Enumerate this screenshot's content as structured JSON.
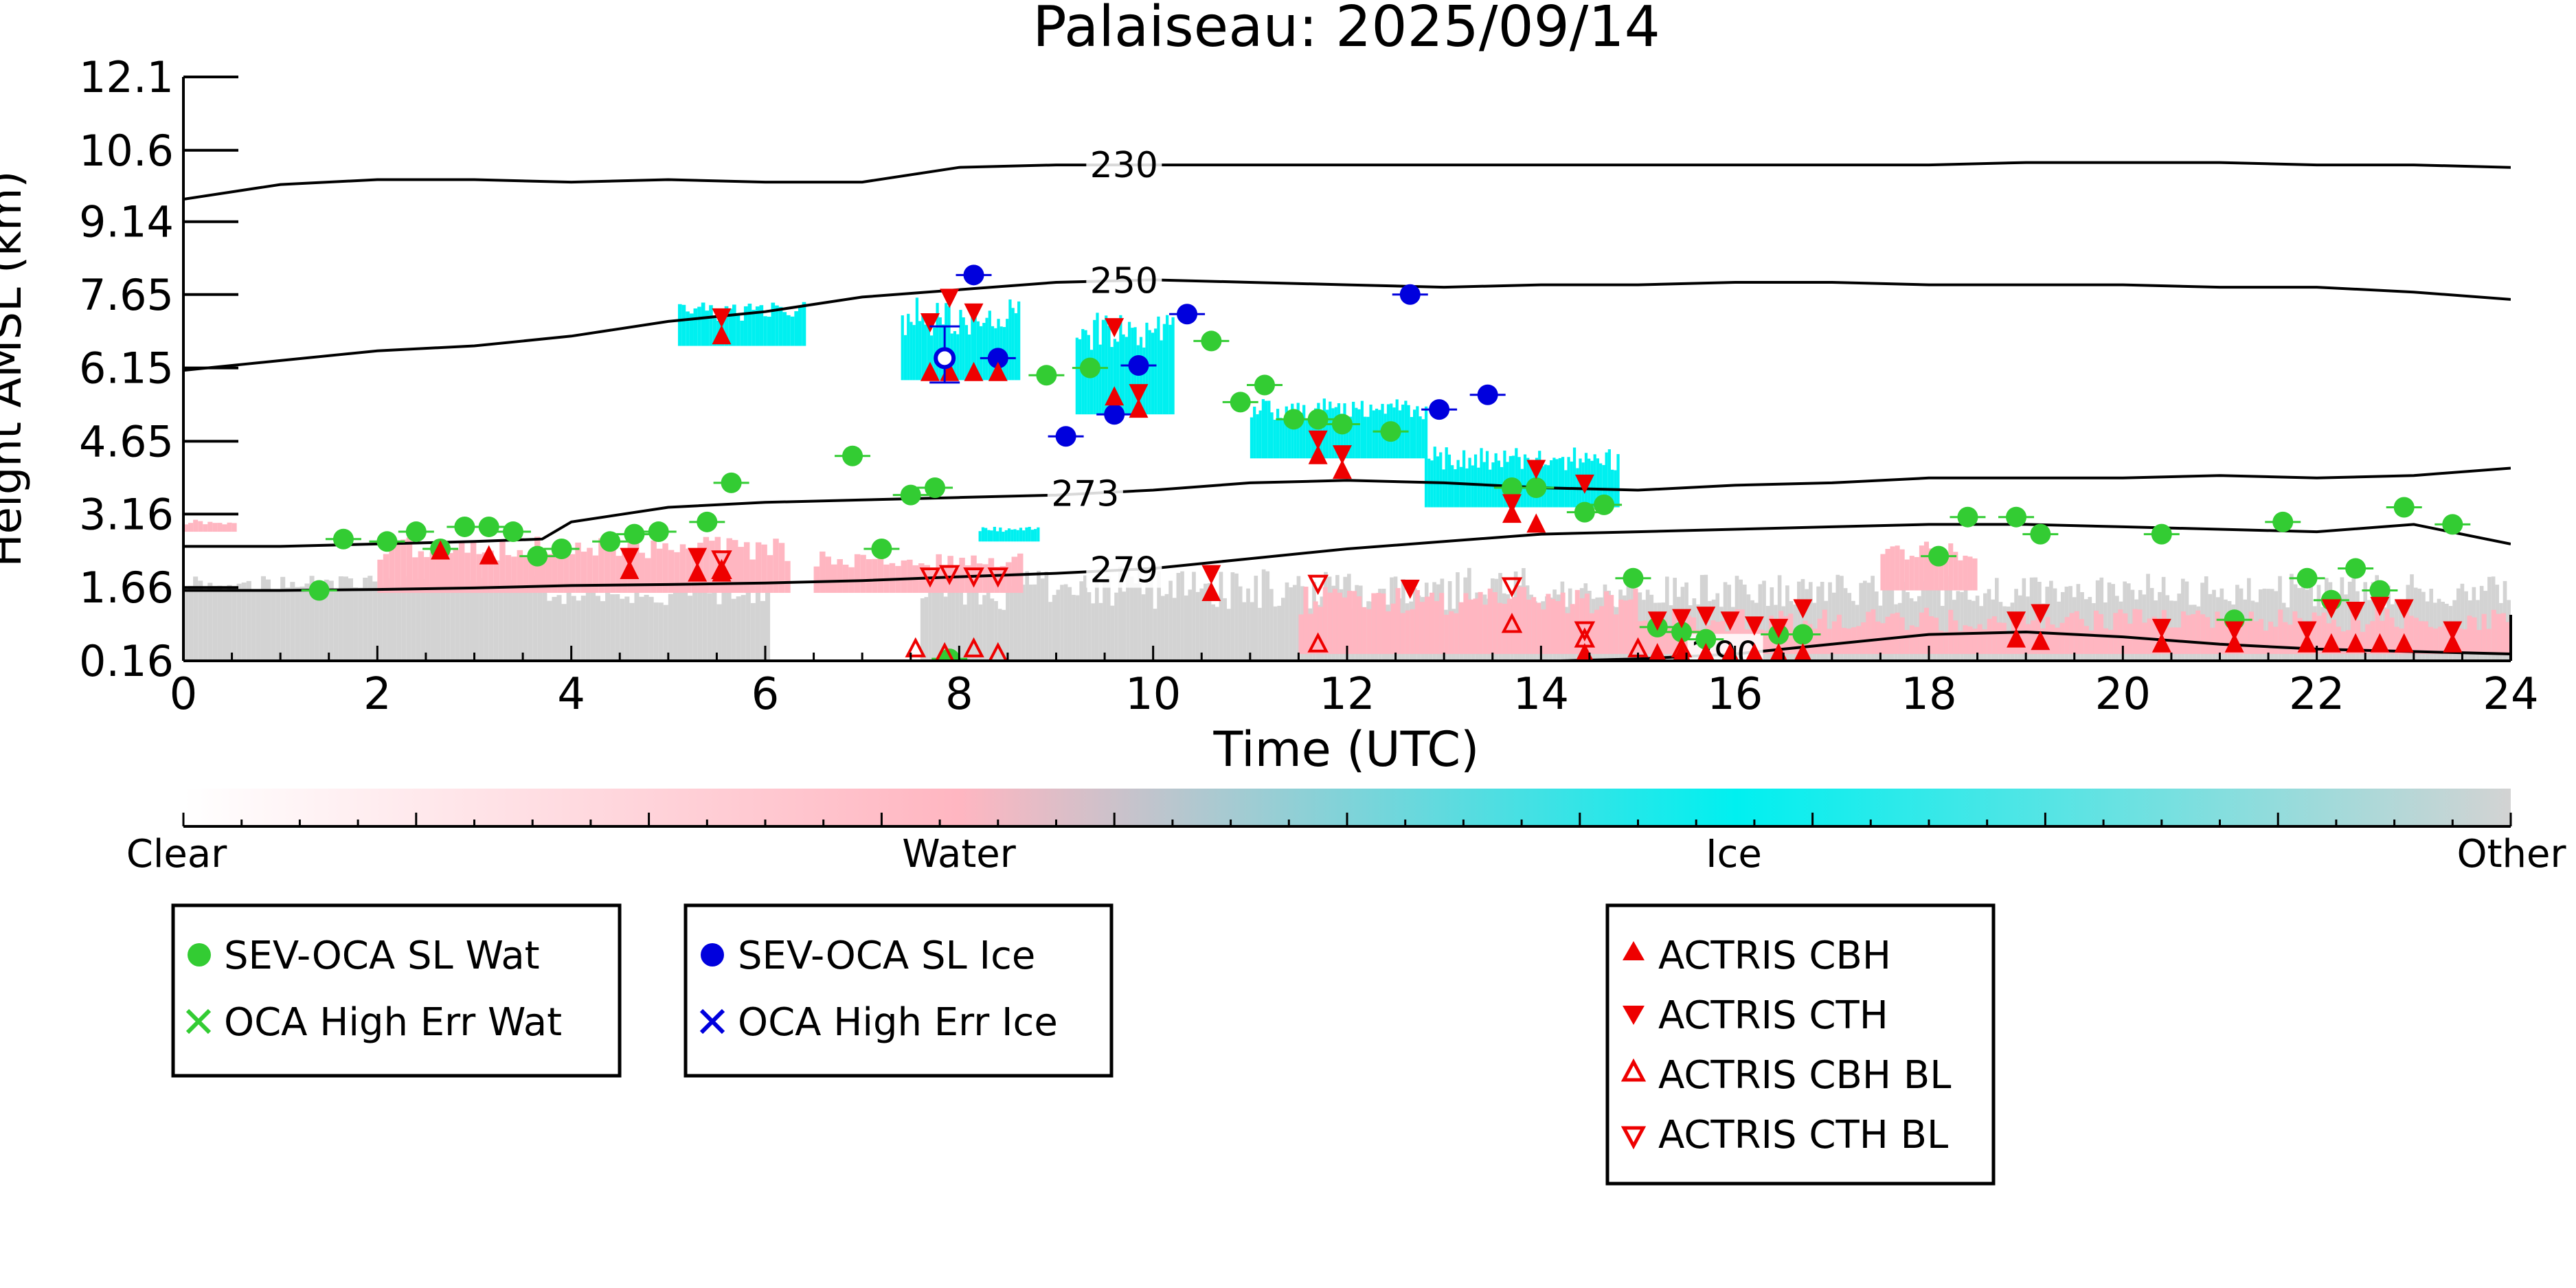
{
  "chart_data": {
    "type": "scatter",
    "title": "Palaiseau: 2025/09/14",
    "xlabel": "Time (UTC)",
    "ylabel": "Height AMSL (km)",
    "xlim": [
      0,
      24
    ],
    "ylim": [
      0.16,
      12.1
    ],
    "xticks": [
      0,
      2,
      4,
      6,
      8,
      10,
      12,
      14,
      16,
      18,
      20,
      22,
      24
    ],
    "yticks": [
      "12.1",
      "10.6",
      "9.14",
      "7.65",
      "6.15",
      "4.65",
      "3.16",
      "1.66",
      "0.16"
    ],
    "colorbar": {
      "labels": [
        "Clear",
        "Water",
        "Ice",
        "Other"
      ],
      "colors": [
        "#ffffff",
        "#ffb6c1",
        "#00f0f0",
        "#d3d3d3"
      ]
    },
    "contours": [
      {
        "label": "230",
        "x": [
          0,
          1,
          2,
          3,
          4,
          5,
          6,
          7,
          8,
          9,
          10,
          11,
          12,
          13,
          14,
          15,
          16,
          17,
          18,
          19,
          20,
          21,
          22,
          23,
          24
        ],
        "y": [
          9.6,
          9.9,
          10.0,
          10.0,
          9.95,
          10.0,
          9.95,
          9.95,
          10.25,
          10.3,
          10.3,
          10.3,
          10.3,
          10.3,
          10.3,
          10.3,
          10.3,
          10.3,
          10.3,
          10.35,
          10.35,
          10.35,
          10.3,
          10.3,
          10.25
        ]
      },
      {
        "label": "250",
        "x": [
          0,
          1,
          2,
          3,
          4,
          5,
          6,
          7,
          8,
          9,
          10,
          11,
          12,
          13,
          14,
          15,
          16,
          17,
          18,
          19,
          20,
          21,
          22,
          23,
          24
        ],
        "y": [
          6.1,
          6.3,
          6.5,
          6.6,
          6.8,
          7.1,
          7.3,
          7.6,
          7.75,
          7.9,
          7.95,
          7.9,
          7.85,
          7.8,
          7.85,
          7.85,
          7.9,
          7.9,
          7.85,
          7.85,
          7.85,
          7.8,
          7.8,
          7.7,
          7.55
        ]
      },
      {
        "label": "273",
        "x": [
          0,
          1,
          2,
          3,
          3.7,
          4,
          5,
          6,
          7,
          8,
          9,
          10,
          11,
          12,
          13,
          14,
          15,
          16,
          17,
          18,
          19,
          20,
          21,
          22,
          23,
          24
        ],
        "y": [
          2.5,
          2.5,
          2.55,
          2.6,
          2.65,
          3.0,
          3.3,
          3.4,
          3.45,
          3.5,
          3.55,
          3.65,
          3.8,
          3.85,
          3.8,
          3.7,
          3.65,
          3.75,
          3.8,
          3.9,
          3.9,
          3.9,
          3.95,
          3.9,
          3.95,
          4.1
        ]
      },
      {
        "label": "279",
        "x": [
          0,
          1,
          2,
          3,
          4,
          5,
          6,
          7,
          8,
          9,
          10,
          11,
          12,
          13,
          14,
          15,
          16,
          17,
          18,
          19,
          20,
          21,
          22,
          23,
          24
        ],
        "y": [
          1.6,
          1.6,
          1.62,
          1.65,
          1.7,
          1.72,
          1.75,
          1.8,
          1.88,
          1.95,
          2.05,
          2.25,
          2.45,
          2.6,
          2.75,
          2.8,
          2.85,
          2.9,
          2.95,
          2.95,
          2.9,
          2.85,
          2.8,
          2.95,
          2.55
        ]
      },
      {
        "label": "290",
        "x": [
          14.2,
          15,
          16,
          17,
          18,
          19,
          20,
          21,
          22,
          23,
          24
        ],
        "y": [
          0.16,
          0.2,
          0.3,
          0.5,
          0.7,
          0.75,
          0.65,
          0.5,
          0.4,
          0.35,
          0.3
        ]
      }
    ],
    "legend": [
      {
        "name": "SEV-OCA SL Wat",
        "marker": "circle",
        "color": "#33cc33"
      },
      {
        "name": "OCA High Err Wat",
        "marker": "x",
        "color": "#33cc33"
      },
      {
        "name": "SEV-OCA SL Ice",
        "marker": "circle",
        "color": "#0000dd"
      },
      {
        "name": "OCA High Err Ice",
        "marker": "x",
        "color": "#0000dd"
      },
      {
        "name": "ACTRIS CBH",
        "marker": "triangle-up",
        "color": "#ee0000"
      },
      {
        "name": "ACTRIS CTH",
        "marker": "triangle-down",
        "color": "#ee0000"
      },
      {
        "name": "ACTRIS CBH BL",
        "marker": "triangle-up-open",
        "color": "#ee0000"
      },
      {
        "name": "ACTRIS CTH BL",
        "marker": "triangle-down-open",
        "color": "#ee0000"
      }
    ],
    "series": [
      {
        "name": "SEV-OCA SL Wat",
        "x": [
          1.4,
          1.65,
          2.1,
          2.4,
          2.65,
          2.9,
          3.15,
          3.4,
          3.65,
          3.9,
          4.4,
          4.65,
          4.9,
          5.4,
          5.65,
          6.9,
          7.2,
          7.5,
          7.75,
          8.9,
          9.35,
          10.6,
          10.9,
          11.15,
          11.45,
          11.7,
          11.95,
          12.45,
          13.7,
          13.95,
          14.45,
          14.65,
          14.95,
          15.2,
          15.45,
          15.7,
          16.45,
          16.7,
          18.1,
          18.4,
          18.9,
          19.15,
          20.4,
          21.15,
          21.65,
          21.9,
          22.15,
          22.4,
          22.65,
          22.9,
          23.4,
          7.9
        ],
        "y": [
          1.6,
          2.65,
          2.6,
          2.8,
          2.45,
          2.9,
          2.9,
          2.8,
          2.3,
          2.45,
          2.6,
          2.75,
          2.8,
          3.0,
          3.8,
          4.35,
          2.45,
          3.55,
          3.7,
          6.0,
          6.15,
          6.7,
          5.45,
          5.8,
          5.1,
          5.1,
          5.0,
          4.85,
          3.7,
          3.7,
          3.2,
          3.35,
          1.85,
          0.85,
          0.75,
          0.6,
          0.7,
          0.7,
          2.3,
          3.1,
          3.1,
          2.75,
          2.75,
          1.0,
          3.0,
          1.85,
          1.4,
          2.05,
          1.6,
          3.3,
          2.95,
          0.2
        ],
        "color": "#33cc33"
      },
      {
        "name": "SEV-OCA SL Ice",
        "x": [
          8.15,
          8.4,
          9.1,
          9.6,
          9.85,
          10.35,
          12.65,
          12.95,
          13.45
        ],
        "y": [
          8.05,
          6.35,
          4.75,
          5.2,
          6.2,
          7.25,
          7.65,
          5.3,
          5.6
        ],
        "color": "#0000dd"
      },
      {
        "name": "ACTRIS CBH",
        "x": [
          5.55,
          7.7,
          7.9,
          8.15,
          8.4,
          9.6,
          9.85,
          10.6,
          11.7,
          11.95,
          13.7,
          13.95,
          14.45,
          15.2,
          15.45,
          15.7,
          15.95,
          16.2,
          16.45,
          16.7,
          18.9,
          19.15,
          20.4,
          21.15,
          21.9,
          22.15,
          22.4,
          22.65,
          22.9,
          23.4,
          2.65,
          3.15,
          4.6,
          5.3,
          5.55
        ],
        "y": [
          6.8,
          6.05,
          6.05,
          6.05,
          6.05,
          5.55,
          5.3,
          1.55,
          4.35,
          4.05,
          3.15,
          2.95,
          0.3,
          0.3,
          0.3,
          0.3,
          0.3,
          0.3,
          0.3,
          0.3,
          0.6,
          0.55,
          0.5,
          0.5,
          0.5,
          0.5,
          0.5,
          0.5,
          0.5,
          0.5,
          2.4,
          2.3,
          2.0,
          1.95,
          1.95
        ],
        "color": "#ee0000"
      },
      {
        "name": "ACTRIS CTH",
        "x": [
          5.55,
          7.7,
          7.9,
          8.15,
          9.6,
          9.85,
          10.6,
          11.7,
          11.95,
          12.65,
          13.7,
          13.95,
          14.45,
          15.2,
          15.45,
          15.7,
          15.95,
          16.2,
          16.45,
          16.7,
          18.9,
          19.15,
          20.4,
          21.15,
          21.9,
          22.15,
          22.4,
          22.65,
          22.9,
          23.4,
          4.6,
          5.3
        ],
        "y": [
          7.2,
          7.1,
          7.6,
          7.3,
          7.0,
          5.65,
          1.95,
          4.7,
          4.4,
          1.65,
          3.4,
          4.1,
          3.8,
          1.0,
          1.05,
          1.1,
          1.0,
          0.9,
          0.85,
          1.25,
          1.0,
          1.15,
          0.85,
          0.8,
          0.8,
          1.25,
          1.2,
          1.3,
          1.25,
          0.8,
          2.3,
          2.3
        ],
        "color": "#ee0000"
      },
      {
        "name": "ACTRIS CBH BL",
        "x": [
          5.55,
          7.55,
          7.85,
          8.15,
          8.4,
          11.7,
          13.7,
          14.45,
          15.0,
          15.45
        ],
        "y": [
          2.0,
          0.4,
          0.3,
          0.4,
          0.3,
          0.5,
          0.9,
          0.6,
          0.4,
          0.4
        ],
        "color": "#ee0000"
      },
      {
        "name": "ACTRIS CTH BL",
        "x": [
          5.55,
          7.7,
          7.9,
          8.15,
          8.4,
          11.7,
          13.7,
          14.45
        ],
        "y": [
          2.25,
          1.9,
          1.95,
          1.9,
          1.9,
          1.75,
          1.7,
          0.8
        ],
        "color": "#ee0000"
      }
    ]
  }
}
